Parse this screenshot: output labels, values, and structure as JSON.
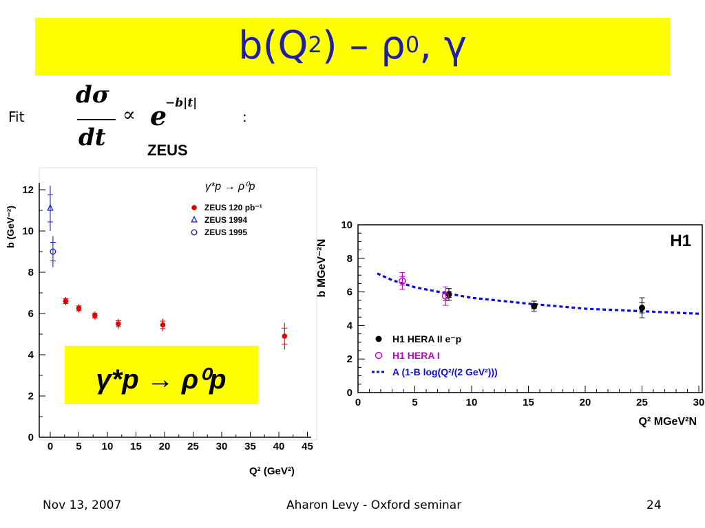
{
  "slide": {
    "title_main": "b(Q",
    "title_sup1": "2",
    "title_mid": ") – ρ",
    "title_sup2": "0",
    "title_end": ", γ",
    "fit_label": "Fit",
    "colon": ":",
    "formula": {
      "num": "dσ",
      "den": "dt",
      "prop": "∝",
      "base": "e",
      "exponent": "−b|t|"
    },
    "zeus_label": "ZEUS",
    "footer": {
      "date": "Nov 13, 2007",
      "center": "Aharon Levy - Oxford seminar",
      "page": "24"
    }
  },
  "colors": {
    "title_bg": "#ffff00",
    "title_text": "#1e1ea8",
    "zeus_red": "#e00000",
    "zeus_blue": "#2020c0",
    "h1_magenta": "#c000c0",
    "fit_blue": "#0a0ae0"
  },
  "chart_data": [
    {
      "type": "scatter",
      "panel": "ZEUS",
      "xlabel": "Q² (GeV²)",
      "ylabel": "b (GeV⁻²)",
      "xlim": [
        -2,
        45
      ],
      "ylim": [
        0,
        13
      ],
      "xticks": [
        "0",
        "5",
        "10",
        "15",
        "20",
        "25",
        "30",
        "35",
        "40",
        "45"
      ],
      "yticks": [
        "0",
        "2",
        "4",
        "6",
        "8",
        "10",
        "12"
      ],
      "process": "γ*p → ρ⁰p",
      "inset_formula": "γ*p → ρ⁰p",
      "legend": [
        {
          "name": "ZEUS 120 pb⁻¹",
          "marker": "filled-circle",
          "color": "#e00000"
        },
        {
          "name": "ZEUS 1994",
          "marker": "open-triangle",
          "color": "#2020c0"
        },
        {
          "name": "ZEUS 1995",
          "marker": "open-circle",
          "color": "#2020c0"
        }
      ],
      "series": [
        {
          "name": "ZEUS 120 pb⁻¹",
          "points": [
            {
              "x": 2.7,
              "y": 6.6,
              "err": 0.2
            },
            {
              "x": 5.0,
              "y": 6.25,
              "err": 0.2
            },
            {
              "x": 7.8,
              "y": 5.9,
              "err": 0.2
            },
            {
              "x": 11.9,
              "y": 5.5,
              "err": 0.25
            },
            {
              "x": 19.7,
              "y": 5.45,
              "err": 0.3
            },
            {
              "x": 41.0,
              "y": 4.9,
              "err": 0.65
            }
          ]
        },
        {
          "name": "ZEUS 1994",
          "points": [
            {
              "x": 0.0,
              "y": 11.1,
              "err": 1.1
            }
          ]
        },
        {
          "name": "ZEUS 1995",
          "points": [
            {
              "x": 0.47,
              "y": 9.0,
              "err": 0.75
            }
          ]
        }
      ]
    },
    {
      "type": "scatter",
      "panel": "H1",
      "label": "H1",
      "xlabel": "Q² MGeV²N",
      "ylabel": "b MGeV⁻²N",
      "xlim": [
        0,
        30
      ],
      "ylim": [
        0,
        10
      ],
      "xticks": [
        "0",
        "5",
        "10",
        "15",
        "20",
        "25",
        "30"
      ],
      "yticks": [
        "0",
        "2",
        "4",
        "6",
        "8",
        "10"
      ],
      "legend": [
        {
          "name": "H1 HERA II e⁻p",
          "marker": "filled-circle",
          "color": "#000000"
        },
        {
          "name": "H1 HERA I",
          "marker": "open-circle",
          "color": "#c000c0"
        },
        {
          "name": "A (1-B log(Q²/(2 GeV²)))",
          "marker": "dashed-line",
          "color": "#0a0ae0"
        }
      ],
      "series": [
        {
          "name": "H1 HERA II e⁻p",
          "points": [
            {
              "x": 8.0,
              "y": 5.85,
              "err": 0.35
            },
            {
              "x": 15.5,
              "y": 5.15,
              "err": 0.3
            },
            {
              "x": 25.0,
              "y": 5.05,
              "err": 0.6
            }
          ]
        },
        {
          "name": "H1 HERA I",
          "points": [
            {
              "x": 3.9,
              "y": 6.65,
              "err": 0.5
            },
            {
              "x": 7.7,
              "y": 5.75,
              "err": 0.55
            }
          ]
        },
        {
          "name": "A (1-B log(Q²/(2 GeV²)))",
          "line": [
            {
              "x": 1.7,
              "y": 7.1
            },
            {
              "x": 3,
              "y": 6.7
            },
            {
              "x": 5,
              "y": 6.28
            },
            {
              "x": 7.5,
              "y": 5.95
            },
            {
              "x": 10,
              "y": 5.65
            },
            {
              "x": 15,
              "y": 5.3
            },
            {
              "x": 20,
              "y": 5.0
            },
            {
              "x": 25,
              "y": 4.85
            },
            {
              "x": 30,
              "y": 4.7
            }
          ]
        }
      ]
    }
  ]
}
